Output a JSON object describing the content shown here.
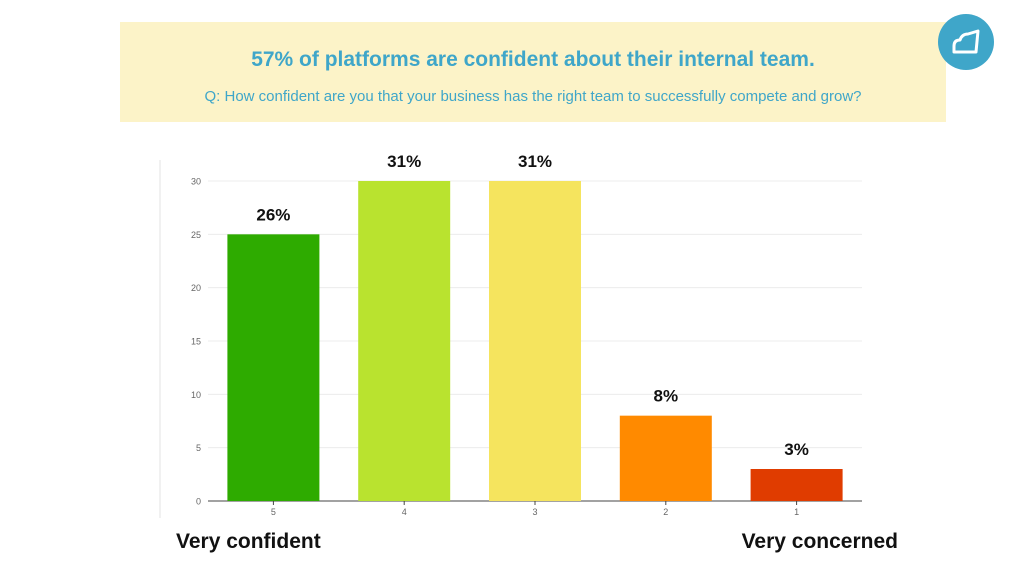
{
  "banner": {
    "title": "57% of platforms are confident about their internal team.",
    "subtitle": "Q: How confident are you that your business has the right team to successfully compete and grow?"
  },
  "logo": {
    "icon": "cloud-logo-icon",
    "color": "#3fa6c9"
  },
  "axis_labels": {
    "left": "Very confident",
    "right": "Very concerned"
  },
  "chart_data": {
    "type": "bar",
    "categories": [
      "5",
      "4",
      "3",
      "2",
      "1"
    ],
    "values": [
      25,
      30,
      30,
      8,
      3
    ],
    "data_labels": [
      "26%",
      "31%",
      "31%",
      "8%",
      "3%"
    ],
    "colors": [
      "#2eab00",
      "#b9e32f",
      "#f5e45e",
      "#ff8a00",
      "#e03c00"
    ],
    "ylim": [
      0,
      30
    ],
    "yticks": [
      0,
      5,
      10,
      15,
      20,
      25,
      30
    ],
    "grid": true
  }
}
